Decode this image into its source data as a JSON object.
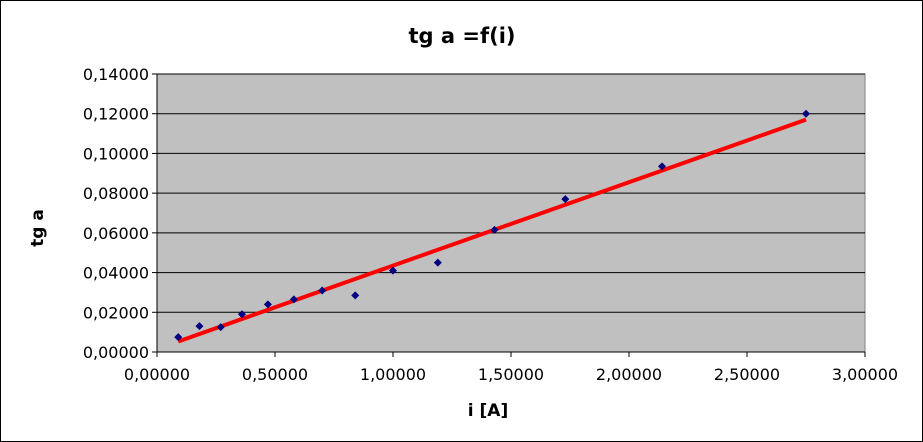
{
  "chart_data": {
    "type": "scatter",
    "title": "tg a =f(i)",
    "xlabel": "i [A]",
    "ylabel": "tg a",
    "xlim": [
      0,
      3
    ],
    "ylim": [
      0,
      0.14
    ],
    "x_ticks": [
      0,
      0.5,
      1,
      1.5,
      2,
      2.5,
      3
    ],
    "y_ticks": [
      0,
      0.02,
      0.04,
      0.06,
      0.08,
      0.1,
      0.12,
      0.14
    ],
    "x_tick_labels": [
      "0,00000",
      "0,50000",
      "1,00000",
      "1,50000",
      "2,00000",
      "2,50000",
      "3,00000"
    ],
    "y_tick_labels": [
      "0,00000",
      "0,02000",
      "0,04000",
      "0,06000",
      "0,08000",
      "0,10000",
      "0,12000",
      "0,14000"
    ],
    "grid": true,
    "plot_background": "#c0c0c0",
    "series": [
      {
        "type": "scatter",
        "marker": "diamond",
        "color": "#000080",
        "x": [
          0.09,
          0.18,
          0.27,
          0.36,
          0.47,
          0.58,
          0.7,
          0.84,
          1.0,
          1.19,
          1.43,
          1.73,
          2.14,
          2.75
        ],
        "y": [
          0.0075,
          0.013,
          0.0125,
          0.019,
          0.024,
          0.0265,
          0.031,
          0.0285,
          0.041,
          0.045,
          0.0615,
          0.077,
          0.0935,
          0.12
        ]
      },
      {
        "type": "line",
        "role": "linear trendline",
        "color": "#ff0000",
        "x": [
          0.09,
          2.75
        ],
        "y": [
          0.0053,
          0.117
        ]
      }
    ]
  }
}
